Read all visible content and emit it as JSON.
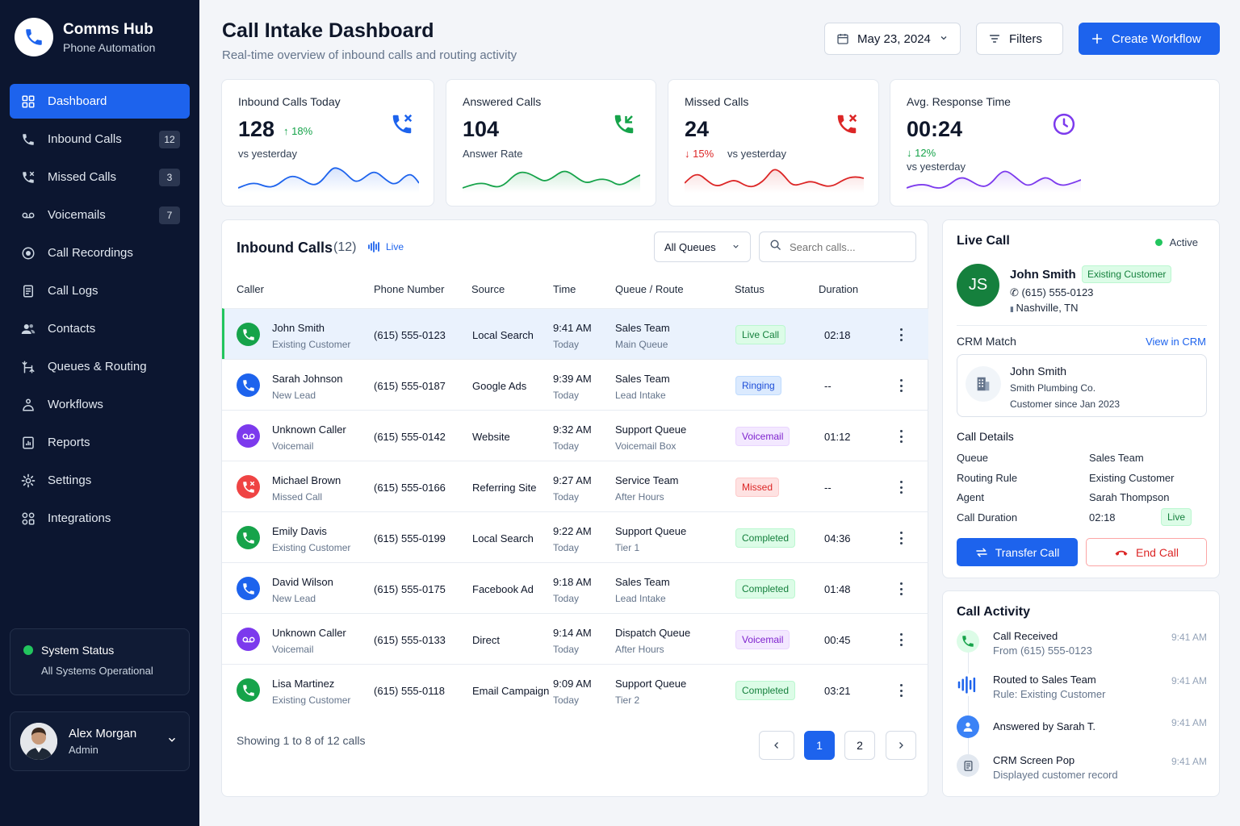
{
  "brand": {
    "title": "Comms Hub",
    "subtitle": "Phone Automation"
  },
  "nav": [
    {
      "label": "Dashboard",
      "badge": "",
      "icon": "grid-icon"
    },
    {
      "label": "Inbound Calls",
      "badge": "12",
      "icon": "phone-icon"
    },
    {
      "label": "Missed Calls",
      "badge": "3",
      "icon": "missed-call-icon"
    },
    {
      "label": "Voicemails",
      "badge": "7",
      "icon": "voicemail-icon"
    },
    {
      "label": "Call Recordings",
      "badge": "",
      "icon": "recording-icon"
    },
    {
      "label": "Call Logs",
      "badge": "",
      "icon": "log-icon"
    },
    {
      "label": "Contacts",
      "badge": "",
      "icon": "contacts-icon"
    },
    {
      "label": "Queues & Routing",
      "badge": "",
      "icon": "routing-icon"
    },
    {
      "label": "Workflows",
      "badge": "",
      "icon": "workflow-icon"
    },
    {
      "label": "Reports",
      "badge": "",
      "icon": "reports-icon"
    },
    {
      "label": "Settings",
      "badge": "",
      "icon": "gear-icon"
    },
    {
      "label": "Integrations",
      "badge": "",
      "icon": "integrations-icon"
    }
  ],
  "system_status": {
    "title": "System Status",
    "detail": "All Systems Operational"
  },
  "user": {
    "name": "Alex Morgan",
    "role": "Admin"
  },
  "header": {
    "title": "Call Intake Dashboard",
    "subtitle": "Real-time overview of inbound calls and routing activity",
    "date": "May 23, 2024",
    "filters": "Filters",
    "create": "Create Workflow"
  },
  "stats": {
    "inbound": {
      "title": "Inbound Calls Today",
      "value": "128",
      "change": "18%",
      "note": "vs yesterday"
    },
    "answered": {
      "title": "Answered Calls",
      "value": "104",
      "note": "Answer Rate"
    },
    "missed": {
      "title": "Missed Calls",
      "value": "24",
      "change": "15%",
      "note": "vs yesterday"
    },
    "response": {
      "title": "Avg. Response Time",
      "value": "00:24",
      "change": "12%",
      "note": "vs yesterday"
    }
  },
  "colors": {
    "accent": "#1d63ed",
    "success": "#16a34a",
    "danger": "#dc2626",
    "purple": "#7c3aed",
    "sidebar": "#0c1630"
  },
  "table": {
    "title": "Inbound Calls",
    "count": "(12)",
    "live": "Live",
    "queue_filter": "All Queues",
    "search_placeholder": "Search calls...",
    "columns": [
      "Caller",
      "Phone Number",
      "Source",
      "Time",
      "Queue / Route",
      "Status",
      "Duration"
    ],
    "rows": [
      {
        "name": "John Smith",
        "type": "Existing Customer",
        "phone": "(615) 555-0123",
        "source": "Local Search",
        "time": "9:41 AM",
        "day": "Today",
        "queue": "Sales Team",
        "route": "Main Queue",
        "status": "Live Call",
        "status_kind": "live",
        "duration": "02:18",
        "icon": "phone-icon"
      },
      {
        "name": "Sarah Johnson",
        "type": "New Lead",
        "phone": "(615) 555-0187",
        "source": "Google Ads",
        "time": "9:39 AM",
        "day": "Today",
        "queue": "Sales Team",
        "route": "Lead Intake",
        "status": "Ringing",
        "status_kind": "ring",
        "duration": "--",
        "icon": "phone-icon"
      },
      {
        "name": "Unknown Caller",
        "type": "Voicemail",
        "phone": "(615) 555-0142",
        "source": "Website",
        "time": "9:32 AM",
        "day": "Today",
        "queue": "Support Queue",
        "route": "Voicemail Box",
        "status": "Voicemail",
        "status_kind": "vm",
        "duration": "01:12",
        "icon": "voicemail-icon"
      },
      {
        "name": "Michael Brown",
        "type": "Missed Call",
        "phone": "(615) 555-0166",
        "source": "Referring Site",
        "time": "9:27 AM",
        "day": "Today",
        "queue": "Service Team",
        "route": "After Hours",
        "status": "Missed",
        "status_kind": "miss",
        "duration": "--",
        "icon": "missed-call-icon"
      },
      {
        "name": "Emily Davis",
        "type": "Existing Customer",
        "phone": "(615) 555-0199",
        "source": "Local Search",
        "time": "9:22 AM",
        "day": "Today",
        "queue": "Support Queue",
        "route": "Tier 1",
        "status": "Completed",
        "status_kind": "done",
        "duration": "04:36",
        "icon": "phone-icon"
      },
      {
        "name": "David Wilson",
        "type": "New Lead",
        "phone": "(615) 555-0175",
        "source": "Facebook Ad",
        "time": "9:18 AM",
        "day": "Today",
        "queue": "Sales Team",
        "route": "Lead Intake",
        "status": "Completed",
        "status_kind": "done",
        "duration": "01:48",
        "icon": "phone-icon"
      },
      {
        "name": "Unknown Caller",
        "type": "Voicemail",
        "phone": "(615) 555-0133",
        "source": "Direct",
        "time": "9:14 AM",
        "day": "Today",
        "queue": "Dispatch Queue",
        "route": "After Hours",
        "status": "Voicemail",
        "status_kind": "vm",
        "duration": "00:45",
        "icon": "voicemail-icon"
      },
      {
        "name": "Lisa Martinez",
        "type": "Existing Customer",
        "phone": "(615) 555-0118",
        "source": "Email Campaign",
        "time": "9:09 AM",
        "day": "Today",
        "queue": "Support Queue",
        "route": "Tier 2",
        "status": "Completed",
        "status_kind": "done",
        "duration": "03:21",
        "icon": "phone-icon"
      }
    ],
    "footer": "Showing 1 to 8 of 12 calls",
    "pages": [
      "1",
      "2"
    ]
  },
  "live_call": {
    "title": "Live Call",
    "status": "Active",
    "initials": "JS",
    "name": "John Smith",
    "tag": "Existing Customer",
    "phone": "(615) 555-0123",
    "location": "Nashville, TN",
    "crm_label": "CRM Match",
    "crm_link": "View in CRM",
    "crm_name": "John Smith",
    "crm_company": "Smith Plumbing Co.",
    "crm_since": "Customer since Jan 2023",
    "details_title": "Call Details",
    "details": [
      {
        "label": "Queue",
        "value": "Sales Team"
      },
      {
        "label": "Routing Rule",
        "value": "Existing Customer"
      },
      {
        "label": "Agent",
        "value": "Sarah Thompson"
      },
      {
        "label": "Call Duration",
        "value": "02:18"
      }
    ],
    "duration_badge": "Live",
    "transfer": "Transfer Call",
    "end": "End Call"
  },
  "activity": {
    "title": "Call Activity",
    "items": [
      {
        "title": "Call Received",
        "sub": "From (615) 555-0123",
        "time": "9:41 AM",
        "icon": "phone-icon"
      },
      {
        "title": "Routed to Sales Team",
        "sub": "Rule: Existing Customer",
        "time": "9:41 AM",
        "icon": "audio-wave-icon"
      },
      {
        "title": "Answered by Sarah T.",
        "sub": "",
        "time": "9:41 AM",
        "icon": "user-icon"
      },
      {
        "title": "CRM Screen Pop",
        "sub": "Displayed customer record",
        "time": "9:41 AM",
        "icon": "document-icon"
      }
    ]
  }
}
